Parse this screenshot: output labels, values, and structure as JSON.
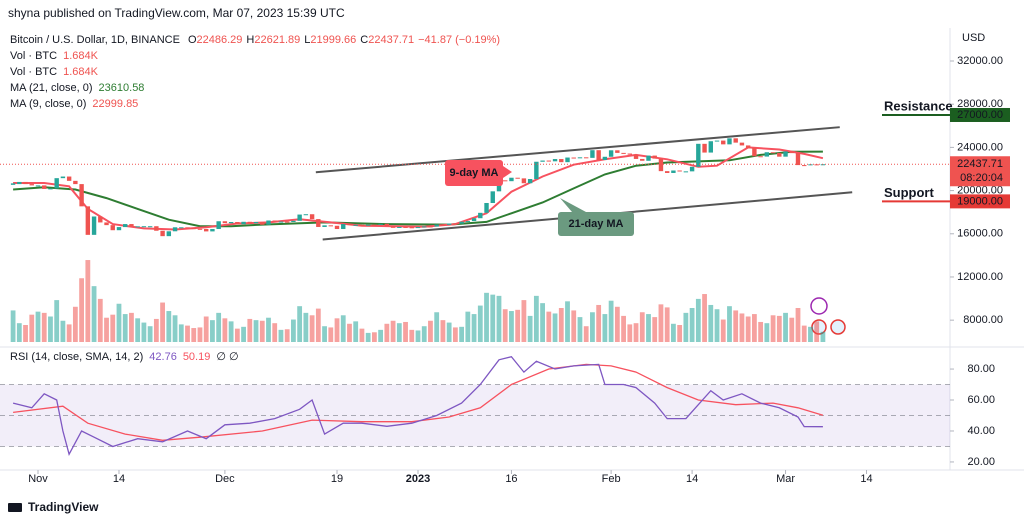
{
  "header": "shyna published on TradingView.com, Mar 07, 2023 15:39 UTC",
  "footer": "TradingView",
  "chart_data": {
    "type": "candlestick",
    "title": "Bitcoin / U.S. Dollar, 1D, BINANCE",
    "ohlc_legend": [
      {
        "label": "O",
        "value": 22486.29
      },
      {
        "label": "H",
        "value": 22621.89
      },
      {
        "label": "L",
        "value": 21999.66
      },
      {
        "label": "C",
        "value": 22437.71
      }
    ],
    "change": "−41.87 (−0.19%)",
    "currency": "USD",
    "up_color": "#26a69a",
    "down_color": "#ef5350",
    "xlim": [
      -2.1,
      150.4
    ],
    "xticks": [
      {
        "value": 4,
        "label": "Nov"
      },
      {
        "value": 17,
        "label": "14"
      },
      {
        "value": 34,
        "label": "Dec"
      },
      {
        "value": 52,
        "label": "19"
      },
      {
        "value": 65,
        "label": "2023"
      },
      {
        "value": 80,
        "label": "16"
      },
      {
        "value": 96,
        "label": "Feb"
      },
      {
        "value": 109,
        "label": "14"
      },
      {
        "value": 124,
        "label": "Mar"
      },
      {
        "value": 137,
        "label": "14"
      }
    ],
    "ylim": [
      5700,
      34870
    ],
    "yticks": [
      {
        "value": 32000,
        "label": "32000.00"
      },
      {
        "value": 28000,
        "label": "28000.00"
      },
      {
        "value": 24000,
        "label": "24000.00"
      },
      {
        "value": 20000,
        "label": "20000.00"
      },
      {
        "value": 16000,
        "label": "16000.00"
      },
      {
        "value": 12000,
        "label": "12000.00"
      },
      {
        "value": 8000,
        "label": "8000.00"
      }
    ],
    "grid": false,
    "close": [
      20600,
      20800,
      20600,
      20480,
      20480,
      20150,
      20200,
      21150,
      21300,
      20900,
      20600,
      18540,
      15900,
      17600,
      17050,
      16800,
      16330,
      16620,
      16900,
      16660,
      16690,
      16700,
      16700,
      16280,
      15780,
      16230,
      16600,
      16600,
      16520,
      16460,
      16440,
      16220,
      16440,
      17160,
      16980,
      17090,
      16890,
      17110,
      16970,
      17090,
      16840,
      17230,
      17130,
      17130,
      17090,
      17200,
      17780,
      17810,
      17360,
      16630,
      16780,
      16740,
      16440,
      16900,
      16820,
      16830,
      16780,
      16840,
      16830,
      16920,
      16700,
      16550,
      16630,
      16600,
      16540,
      16620,
      16680,
      16670,
      16850,
      16830,
      16950,
      16940,
      17120,
      17180,
      17440,
      17940,
      18850,
      19930,
      20950,
      20870,
      21190,
      21130,
      20680,
      21070,
      22670,
      22780,
      22710,
      22920,
      22630,
      23060,
      23010,
      23080,
      23030,
      23740,
      22830,
      23130,
      23730,
      23490,
      23430,
      23330,
      22930,
      22760,
      23240,
      22960,
      21800,
      21630,
      21860,
      21780,
      21780,
      22200,
      24330,
      23520,
      24570,
      24630,
      24280,
      24840,
      24440,
      24180,
      23950,
      23180,
      23150,
      23550,
      23490,
      23140,
      23630,
      23470,
      22360,
      22350,
      22430,
      22410,
      22437.71
    ],
    "last_price": {
      "value": 22437.71,
      "label": "22437.71"
    },
    "countdown": "08:20:04",
    "volume": {
      "ylim": [
        0,
        14
      ],
      "values": [
        5.2,
        3.1,
        2.8,
        4.5,
        5.0,
        4.8,
        4.2,
        6.9,
        3.5,
        2.9,
        5.8,
        10.5,
        13.5,
        9.2,
        7.1,
        4.0,
        4.5,
        6.3,
        4.6,
        4.8,
        3.9,
        3.2,
        2.6,
        3.8,
        6.5,
        5.1,
        4.4,
        2.9,
        2.7,
        2.3,
        2.4,
        4.2,
        3.6,
        4.8,
        3.9,
        3.4,
        2.2,
        2.5,
        3.8,
        3.6,
        3.5,
        4.0,
        3.1,
        2.0,
        2.1,
        3.7,
        5.9,
        4.8,
        4.4,
        5.5,
        2.6,
        2.4,
        3.9,
        4.4,
        3.0,
        3.4,
        2.2,
        1.5,
        1.6,
        2.0,
        3.0,
        3.5,
        3.1,
        3.3,
        2.0,
        1.9,
        2.6,
        3.5,
        4.9,
        3.6,
        3.2,
        2.4,
        2.5,
        5.0,
        4.6,
        6.0,
        8.1,
        7.8,
        7.6,
        5.4,
        5.1,
        5.3,
        6.9,
        4.3,
        7.6,
        6.4,
        5.0,
        4.7,
        5.6,
        6.7,
        5.2,
        4.1,
        2.6,
        4.9,
        6.1,
        4.6,
        6.8,
        5.8,
        4.3,
        2.9,
        3.1,
        4.9,
        4.6,
        4.1,
        6.2,
        5.7,
        3.0,
        2.8,
        4.8,
        5.6,
        7.1,
        7.9,
        6.1,
        5.4,
        3.7,
        5.9,
        5.2,
        4.7,
        4.2,
        4.6,
        3.3,
        3.1,
        4.4,
        4.3,
        4.8,
        4.0,
        5.6,
        2.7,
        2.5,
        3.4,
        1.684
      ]
    },
    "legend": [
      {
        "label": "Vol · BTC",
        "value": "1.684K",
        "color": "#ef5350"
      },
      {
        "label": "Vol · BTC",
        "value": "1.684K",
        "color": "#ef5350"
      },
      {
        "label": "MA (21, close, 0)",
        "value": 23610.58,
        "color": "#2e7d32"
      },
      {
        "label": "MA (9, close, 0)",
        "value": 22999.85,
        "color": "#ef5350"
      }
    ],
    "series": [
      {
        "name": "MA (21, close, 0)",
        "color": "#2e7d32",
        "x": [
          0,
          5,
          10,
          15,
          20,
          25,
          30,
          35,
          40,
          50,
          60,
          70,
          76,
          80,
          85,
          90,
          95,
          100,
          105,
          110,
          115,
          120,
          125,
          130
        ],
        "values": [
          20100,
          20300,
          20100,
          19300,
          18300,
          17300,
          16700,
          16700,
          16850,
          17050,
          16900,
          16850,
          17100,
          17900,
          18900,
          20200,
          21500,
          22300,
          22600,
          22700,
          22800,
          23300,
          23600,
          23610.58
        ]
      },
      {
        "name": "MA (9, close, 0)",
        "color": "#f7525f",
        "x": [
          0,
          5,
          9,
          12,
          16,
          21,
          26,
          31,
          36,
          41,
          46,
          51,
          56,
          61,
          66,
          71,
          76,
          80,
          85,
          90,
          95,
          100,
          105,
          110,
          113,
          118,
          123,
          127,
          130
        ],
        "values": [
          20700,
          20700,
          20400,
          18300,
          16900,
          16500,
          16400,
          16600,
          16950,
          17050,
          17350,
          17050,
          16750,
          16700,
          16650,
          16900,
          17900,
          19900,
          21300,
          22400,
          22900,
          23300,
          22900,
          22200,
          22300,
          24000,
          23800,
          23400,
          22999.85
        ]
      }
    ],
    "trendlines": [
      {
        "color": "#555555",
        "x": [
          48.6,
          132.7
        ],
        "values": [
          21694,
          25870
        ]
      },
      {
        "color": "#555555",
        "x": [
          49.7,
          134.7
        ],
        "values": [
          15470,
          19840
        ]
      }
    ],
    "levels": [
      {
        "text": "Resistance",
        "value": {
          "value": 27000,
          "label": "27000.00"
        },
        "text_color": "#e53935",
        "line_color": "#1b5e20"
      },
      {
        "text": "Support",
        "value": {
          "value": 19000,
          "label": "19000.00"
        },
        "text_color": "#1b5e20",
        "line_color": "#e53935"
      }
    ],
    "callouts": [
      {
        "text": "9-day MA",
        "color": "#f7525f"
      },
      {
        "text": "21-day MA",
        "color": "#6b9a80"
      }
    ],
    "rsi": {
      "label": "RSI (14, close, SMA, 14, 2)",
      "values_legend": [
        {
          "value": 42.76,
          "color": "#7e57c2"
        },
        {
          "value": 50.19,
          "color": "#f7525f"
        }
      ],
      "extra": "∅ ∅",
      "ylim": [
        14.8,
        92.3
      ],
      "yticks": [
        {
          "value": 80,
          "label": "80.00"
        },
        {
          "value": 60,
          "label": "60.00"
        },
        {
          "value": 40,
          "label": "40.00"
        },
        {
          "value": 20,
          "label": "20.00"
        }
      ],
      "band": [
        30,
        70
      ],
      "midline": 50,
      "series": [
        {
          "name": "RSI",
          "color": "#7e57c2",
          "x": [
            0,
            3,
            5,
            7,
            8,
            9,
            11,
            13,
            16,
            20,
            24,
            28,
            31,
            34,
            38,
            42,
            46,
            48,
            50,
            53,
            56,
            60,
            64,
            68,
            72,
            75,
            78,
            80,
            82,
            84,
            87,
            90,
            94,
            95,
            98,
            100,
            103,
            105,
            108,
            110,
            112,
            114,
            117,
            120,
            123,
            126,
            127,
            130
          ],
          "values": [
            58,
            55,
            64,
            60,
            40,
            25,
            40,
            36,
            30,
            35,
            33,
            40,
            35,
            44,
            45,
            48,
            54,
            60,
            38,
            45,
            45,
            43,
            45,
            50,
            58,
            70,
            86,
            88,
            78,
            85,
            80,
            82,
            83,
            70,
            70,
            68,
            58,
            48,
            48,
            57,
            66,
            60,
            64,
            58,
            55,
            49,
            42.8,
            42.76
          ]
        },
        {
          "name": "RSI SMA",
          "color": "#f7525f",
          "x": [
            0,
            8,
            12,
            18,
            24,
            30,
            40,
            48,
            56,
            64,
            70,
            75,
            80,
            86,
            92,
            96,
            100,
            105,
            110,
            116,
            122,
            126,
            130
          ],
          "values": [
            52,
            56,
            45,
            38,
            34,
            36,
            40,
            47,
            46,
            46,
            49,
            55,
            70,
            80,
            83,
            82,
            78,
            68,
            60,
            57,
            58,
            55,
            50.19
          ]
        }
      ]
    }
  }
}
